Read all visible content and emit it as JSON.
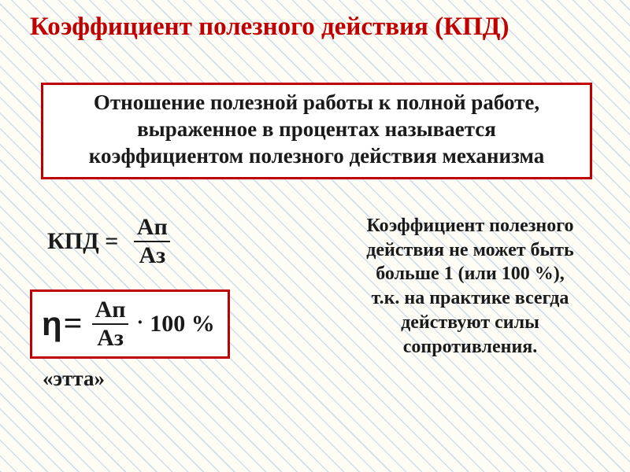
{
  "colors": {
    "title_color": "#c00000",
    "text_color": "#1a1a1a",
    "box_border": "#c00000",
    "frac_line": "#1a1a1a"
  },
  "fonts": {
    "title_size": 33,
    "def_size": 27,
    "formula1_size": 30,
    "formula2_lhs_size": 42,
    "formula2_frac_size": 30,
    "formula2_tail_size": 30,
    "note_size": 24,
    "etta_size": 27
  },
  "title": {
    "text": "Коэффициент полезного действия (КПД)"
  },
  "definition": {
    "text": "Отношение полезной работы к полной работе, выраженное в процентах называется коэффициентом полезного действия механизма"
  },
  "formula1": {
    "lhs": "КПД = ",
    "num": "Ап",
    "den": "Аз"
  },
  "formula2": {
    "eta": "η",
    "eq": "=",
    "num": "Ап",
    "den": "Аз",
    "mult": "·",
    "tail": "100 %"
  },
  "note": {
    "line1": "Коэффициент полезного",
    "line2": "действия не может быть",
    "line3": "больше 1 (или 100 %),",
    "line4": "т.к. на практике всегда",
    "line5": "действуют силы",
    "line6": "сопротивления."
  },
  "etta": {
    "text": "«этта»"
  }
}
